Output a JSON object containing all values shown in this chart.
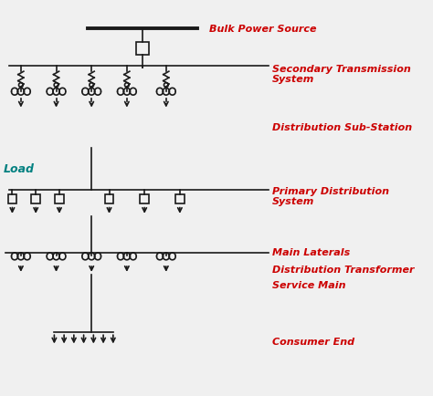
{
  "background_color": "#f0f0f0",
  "line_color": "#1a1a1a",
  "text_color_red": "#cc0000",
  "text_color_green": "#008080",
  "labels": {
    "bulk_power": "Bulk Power Source",
    "secondary_tx": "Secondary Transmission\nSystem",
    "dist_substation": "Distribution Sub-Station",
    "load": "Load",
    "primary_dist": "Primary Distribution\nSystem",
    "main_laterals": "Main Laterals",
    "dist_transformer": "Distribution Transformer",
    "service_main": "Service Main",
    "consumer_end": "Consumer End"
  },
  "figsize": [
    4.74,
    4.35
  ],
  "dpi": 100
}
